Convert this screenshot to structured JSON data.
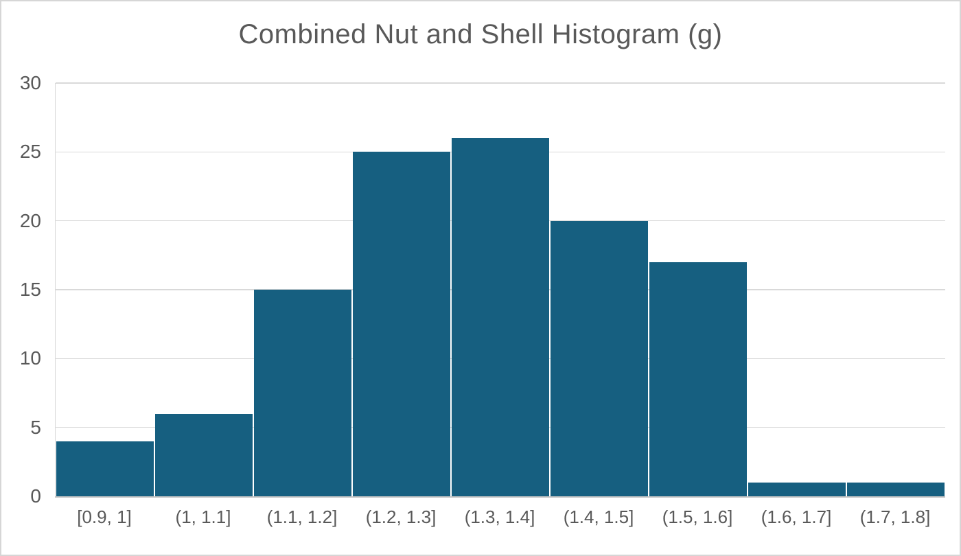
{
  "chart_data": {
    "type": "bar",
    "subtype": "histogram",
    "title": "Combined Nut and Shell Histogram (g)",
    "categories": [
      "[0.9, 1]",
      "(1, 1.1]",
      "(1.1, 1.2]",
      "(1.2, 1.3]",
      "(1.3, 1.4]",
      "(1.4, 1.5]",
      "(1.5, 1.6]",
      "(1.6, 1.7]",
      "(1.7, 1.8]"
    ],
    "values": [
      4,
      6,
      15,
      25,
      26,
      20,
      17,
      1,
      1
    ],
    "xlabel": "",
    "ylabel": "",
    "ylim": [
      0,
      30
    ],
    "yticks": [
      0,
      5,
      10,
      15,
      20,
      25,
      30
    ],
    "grid": true,
    "legend": "none",
    "colors": {
      "bar_fill": "#165f80",
      "text": "#595959",
      "gridline": "#d9d9d9",
      "axis_line": "#c3c3c3",
      "frame_border": "#d6d6d6",
      "background": "#ffffff"
    }
  }
}
